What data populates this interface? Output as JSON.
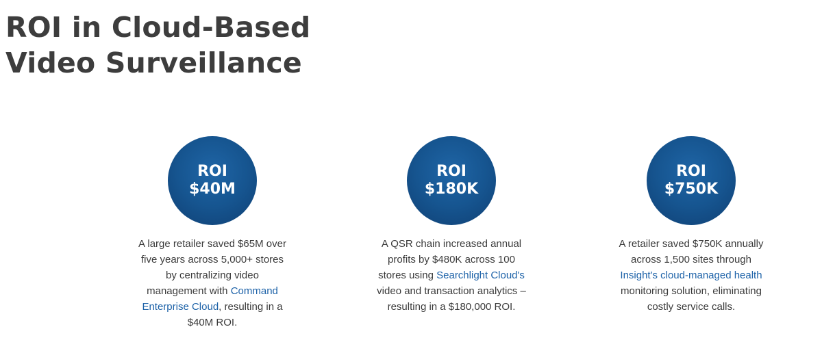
{
  "header": {
    "title_line_1": "ROI in Cloud-Based",
    "title_line_2": "Video Surveillance"
  },
  "cards": [
    {
      "badge_label": "ROI",
      "badge_value": "$40M",
      "lines": [
        "A large retailer saved $65M over",
        "five years across 5,000+ stores",
        "by centralizing video"
      ],
      "line4_pre": "management with ",
      "line4_link": "Command",
      "line5_link": "Enterprise Cloud",
      "line5_post": ", resulting in a",
      "line6": "$40M ROI."
    },
    {
      "badge_label": "ROI",
      "badge_value": "$180K",
      "lines": [
        "A QSR chain increased annual",
        "profits by $480K across 100"
      ],
      "line3_pre": "stores using ",
      "line3_link": "Searchlight Cloud's",
      "line4": "video and transaction analytics –",
      "line5": "resulting in a $180,000 ROI."
    },
    {
      "badge_label": "ROI",
      "badge_value": "$750K",
      "lines": [
        "A retailer saved $750K annually",
        "across 1,500 sites through"
      ],
      "line3_link": "Insight's cloud-managed health",
      "line4": "monitoring solution, eliminating",
      "line5": "costly service calls."
    }
  ],
  "colors": {
    "badge": "#165590",
    "link": "#1d62a8",
    "title": "#3d3d3d"
  }
}
